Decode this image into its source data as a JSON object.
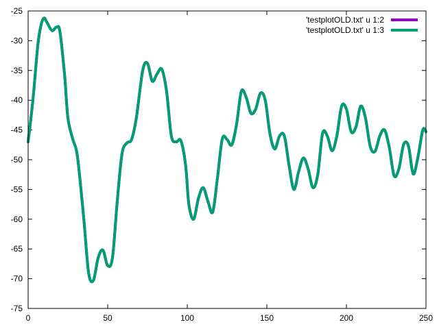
{
  "chart_data": {
    "type": "line",
    "title": "",
    "xlabel": "",
    "ylabel": "",
    "xlim": [
      0,
      250
    ],
    "ylim": [
      -75,
      -25
    ],
    "xticks": [
      0,
      50,
      100,
      150,
      200,
      250
    ],
    "yticks": [
      -75,
      -70,
      -65,
      -60,
      -55,
      -50,
      -45,
      -40,
      -35,
      -30,
      -25
    ],
    "grid": false,
    "legend_position": "top-right",
    "series": [
      {
        "name": "'testplotOLD.txt' u 1:2",
        "color": "#9400d3",
        "x": [
          0,
          3,
          6,
          8,
          10,
          12,
          15,
          18,
          20,
          23,
          25,
          28,
          31,
          35,
          38,
          41,
          44,
          47,
          50,
          53,
          56,
          59,
          62,
          65,
          68,
          72,
          75,
          78,
          81,
          84,
          87,
          90,
          93,
          96,
          99,
          101,
          104,
          107,
          110,
          113,
          116,
          119,
          122,
          125,
          128,
          131,
          134,
          137,
          140,
          143,
          146,
          149,
          152,
          155,
          158,
          161,
          164,
          167,
          170,
          173,
          176,
          179,
          182,
          185,
          188,
          191,
          194,
          197,
          200,
          203,
          206,
          209,
          212,
          215,
          218,
          221,
          224,
          227,
          230,
          233,
          236,
          239,
          242,
          245,
          248,
          250
        ],
        "y": [
          -47.0,
          -40.0,
          -31.0,
          -27.5,
          -26.2,
          -27.0,
          -28.3,
          -27.7,
          -28.5,
          -36.0,
          -43.0,
          -46.5,
          -49.5,
          -60.0,
          -69.0,
          -70.3,
          -66.5,
          -65.2,
          -67.8,
          -66.5,
          -57.0,
          -49.0,
          -47.2,
          -46.6,
          -43.0,
          -35.0,
          -33.8,
          -36.8,
          -35.6,
          -34.8,
          -38.5,
          -46.0,
          -47.0,
          -46.8,
          -51.0,
          -57.5,
          -60.0,
          -56.5,
          -54.7,
          -57.0,
          -58.8,
          -53.0,
          -46.5,
          -46.6,
          -47.5,
          -44.0,
          -38.5,
          -39.5,
          -42.2,
          -41.5,
          -38.8,
          -40.0,
          -45.7,
          -48.2,
          -46.0,
          -46.0,
          -51.0,
          -55.0,
          -52.0,
          -49.7,
          -51.6,
          -54.7,
          -52.5,
          -45.6,
          -46.0,
          -48.5,
          -46.0,
          -41.0,
          -41.5,
          -45.3,
          -44.5,
          -41.0,
          -43.0,
          -47.8,
          -48.6,
          -46.0,
          -45.0,
          -48.0,
          -52.7,
          -51.5,
          -47.4,
          -47.7,
          -52.4,
          -49.5,
          -45.0,
          -45.3
        ]
      },
      {
        "name": "'testplotOLD.txt' u 1:3",
        "color": "#009e73",
        "x": [
          0,
          3,
          6,
          8,
          10,
          12,
          15,
          18,
          20,
          23,
          25,
          28,
          31,
          35,
          38,
          41,
          44,
          47,
          50,
          53,
          56,
          59,
          62,
          65,
          68,
          72,
          75,
          78,
          81,
          84,
          87,
          90,
          93,
          96,
          99,
          101,
          104,
          107,
          110,
          113,
          116,
          119,
          122,
          125,
          128,
          131,
          134,
          137,
          140,
          143,
          146,
          149,
          152,
          155,
          158,
          161,
          164,
          167,
          170,
          173,
          176,
          179,
          182,
          185,
          188,
          191,
          194,
          197,
          200,
          203,
          206,
          209,
          212,
          215,
          218,
          221,
          224,
          227,
          230,
          233,
          236,
          239,
          242,
          245,
          248,
          250
        ],
        "y": [
          -47.0,
          -40.0,
          -31.0,
          -27.5,
          -26.2,
          -27.0,
          -28.3,
          -27.7,
          -28.5,
          -36.0,
          -43.0,
          -46.5,
          -49.5,
          -60.0,
          -69.0,
          -70.3,
          -66.5,
          -65.2,
          -67.8,
          -66.5,
          -57.0,
          -49.0,
          -47.2,
          -46.6,
          -43.0,
          -35.0,
          -33.8,
          -36.8,
          -35.6,
          -34.8,
          -38.5,
          -46.0,
          -47.0,
          -46.8,
          -51.0,
          -57.5,
          -60.0,
          -56.5,
          -54.7,
          -57.0,
          -58.8,
          -53.0,
          -46.5,
          -46.6,
          -47.5,
          -44.0,
          -38.5,
          -39.5,
          -42.2,
          -41.5,
          -38.8,
          -40.0,
          -45.7,
          -48.2,
          -46.0,
          -46.0,
          -51.0,
          -55.0,
          -52.0,
          -49.7,
          -51.6,
          -54.7,
          -52.5,
          -45.6,
          -46.0,
          -48.5,
          -46.0,
          -41.0,
          -41.5,
          -45.3,
          -44.5,
          -41.0,
          -43.0,
          -47.8,
          -48.6,
          -46.0,
          -45.0,
          -48.0,
          -52.7,
          -51.5,
          -47.4,
          -47.7,
          -52.4,
          -49.5,
          -45.0,
          -45.3
        ]
      }
    ]
  }
}
